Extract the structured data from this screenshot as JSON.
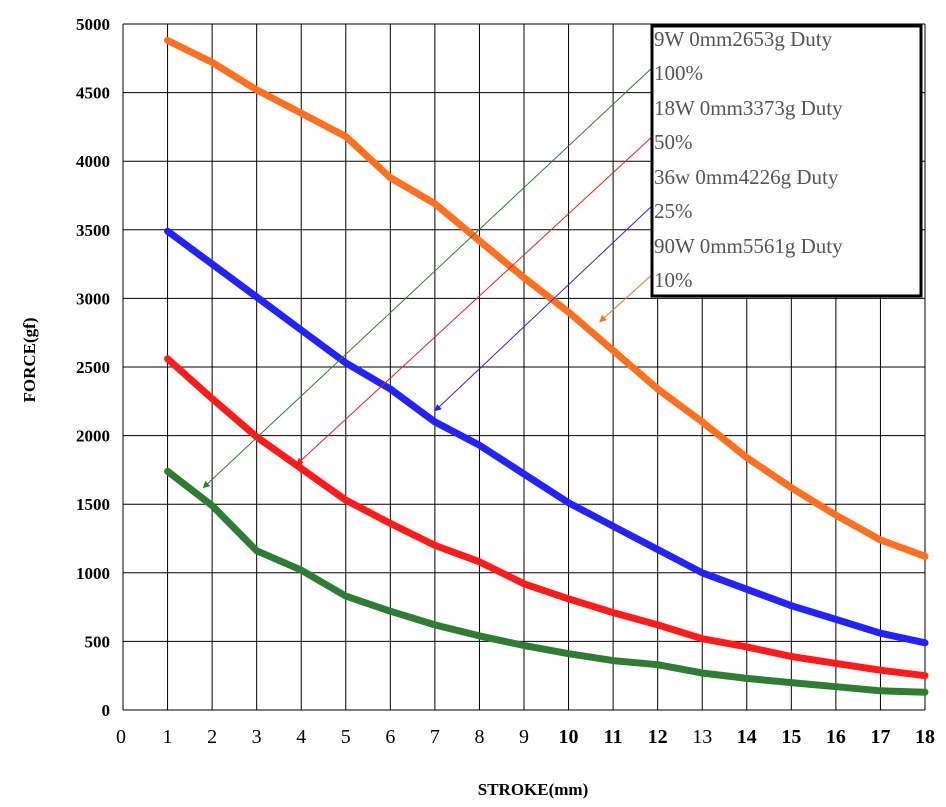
{
  "chart_data": {
    "type": "line",
    "xlabel": "STROKE(mm)",
    "ylabel": "FORCE(gf)",
    "xlim": [
      0,
      18
    ],
    "ylim": [
      0,
      5000
    ],
    "x_ticks": [
      "0",
      "1",
      "2",
      "3",
      "4",
      "5",
      "6",
      "7",
      "8",
      "9",
      "10",
      "11",
      "12",
      "13",
      "14",
      "15",
      "16",
      "17",
      "18"
    ],
    "y_ticks": [
      "0",
      "500",
      "1000",
      "1500",
      "2000",
      "2500",
      "3000",
      "3500",
      "4000",
      "4500",
      "5000"
    ],
    "grid": true,
    "legend_position": "top-right",
    "x": [
      1,
      2,
      3,
      4,
      5,
      6,
      7,
      8,
      9,
      10,
      11,
      12,
      13,
      14,
      15,
      16,
      17,
      18
    ],
    "series": [
      {
        "name": "9W   0mm2653g Duty 100%",
        "color": "#2e7d32",
        "values": [
          1740,
          1490,
          1160,
          1020,
          830,
          720,
          620,
          540,
          470,
          410,
          360,
          330,
          270,
          230,
          200,
          170,
          140,
          130
        ]
      },
      {
        "name": "18W 0mm3373g Duty 50%",
        "color": "#ff1a1a",
        "values": [
          2560,
          2270,
          1990,
          1760,
          1530,
          1360,
          1200,
          1080,
          920,
          810,
          710,
          620,
          520,
          460,
          390,
          340,
          290,
          250
        ]
      },
      {
        "name": "36w 0mm4226g Duty 25%",
        "color": "#2222ff",
        "values": [
          3490,
          3250,
          3010,
          2770,
          2530,
          2340,
          2100,
          1930,
          1720,
          1510,
          1340,
          1170,
          1000,
          880,
          760,
          660,
          560,
          490
        ]
      },
      {
        "name": "90W 0mm5561g Duty 10%",
        "color": "#ff6f1e",
        "values": [
          4880,
          4720,
          4520,
          4350,
          4180,
          3880,
          3690,
          3420,
          3150,
          2900,
          2620,
          2340,
          2100,
          1840,
          1620,
          1420,
          1240,
          1120
        ]
      }
    ],
    "legend_lines": [
      {
        "series": "9W   0mm2653g Duty 100%",
        "lines": [
          "9W   0mm2653g Duty",
          "100%"
        ]
      },
      {
        "series": "18W 0mm3373g Duty 50%",
        "lines": [
          "18W 0mm3373g Duty",
          "50%"
        ]
      },
      {
        "series": "36w 0mm4226g Duty 25%",
        "lines": [
          "36w 0mm4226g Duty",
          "25%"
        ]
      },
      {
        "series": "90W 0mm5561g Duty 10%",
        "lines": [
          "90W 0mm5561g Duty",
          "10%"
        ]
      }
    ],
    "bold_x_ticks": [
      "10",
      "11",
      "12",
      "14",
      "15",
      "16",
      "17",
      "18"
    ],
    "pointer_arrows": [
      {
        "series": "9W   0mm2653g Duty 100%",
        "points_to": {
          "x": 1.8,
          "y": 1620
        }
      },
      {
        "series": "18W 0mm3373g Duty 50%",
        "points_to": {
          "x": 3.9,
          "y": 1790
        }
      },
      {
        "series": "36w 0mm4226g Duty 25%",
        "points_to": {
          "x": 7.0,
          "y": 2180
        }
      },
      {
        "series": "90W 0mm5561g Duty 10%",
        "points_to": {
          "x": 10.7,
          "y": 2830
        }
      }
    ]
  }
}
